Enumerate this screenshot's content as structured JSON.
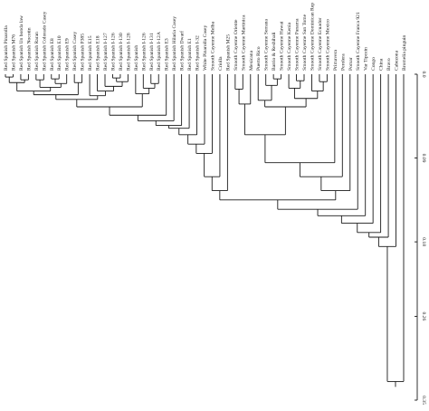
{
  "dendrogram": {
    "orientation": "rotated-90",
    "leaves": [
      "Red Spanish Pinarolla",
      "Red Spanish M76",
      "Red Spanish Un bonda law",
      "Red Spanish Nocotin",
      "Red Spanish Raran",
      "Red Spanish Colorado Casey",
      "Red Spanish E8",
      "Red Spanish E10",
      "Red Spanish E9",
      "Red Spanish Casey",
      "Red Spanish P385",
      "Red Spanish E15",
      "Red Spanish E18",
      "Red Spanish I-127",
      "Red Spanish I-126",
      "Red Spanish I-130",
      "Red Spanish I-128",
      "Red Spanish",
      "Red Spanish I-126",
      "Red Spanish I-131",
      "Red Spanish I-12A",
      "Red Spanish E3",
      "Red Spanish Hilaria Casey",
      "Red Spanish Dwarf",
      "Red Spanish E1",
      "Red Spanish I-32",
      "White Pinarolla Casey",
      "Smooth Cayenne Melba",
      "Criolla",
      "Red Spanish M25",
      "Smooth Cayenne Oriente",
      "Smooth Cayenne Martinica",
      "Mexicana",
      "Puerto Rico",
      "Smooth Cayenne Serrana",
      "Barrio & Reshihali",
      "Smooth Cayenne Hawai",
      "Smooth Cayenne Kenia",
      "Smooth Cayenne Panama",
      "Smooth Cayenne San Tome",
      "Smooth Cayenne Dominican Rep",
      "Smooth Cayenne Ecuador",
      "Smooth Cayenne Mexico",
      "Primavera",
      "Perolera",
      "Pomar",
      "Smooth Cayenne Franca 921",
      "Var Tipcein",
      "Congo",
      "China",
      "Bravo",
      "Cabezona",
      "Bromelia pinguin"
    ],
    "axis": {
      "ticks": [
        "0.0",
        "0.09",
        "0.18",
        "0.26",
        "0.35"
      ],
      "tick_values": [
        0.0,
        0.09,
        0.18,
        0.26,
        0.35
      ],
      "range": [
        0,
        0.35
      ]
    },
    "merges": [
      [
        0,
        1,
        0.003
      ],
      [
        2,
        3,
        0.006
      ],
      [
        53,
        54,
        0.009
      ],
      [
        4,
        5,
        0.006
      ],
      [
        6,
        7,
        0.005
      ],
      [
        57,
        8,
        0.01
      ],
      [
        56,
        58,
        0.014
      ],
      [
        55,
        59,
        0.018
      ],
      [
        9,
        10,
        0.009
      ],
      [
        60,
        61,
        0.022
      ],
      [
        14,
        15,
        0.004
      ],
      [
        63,
        16,
        0.008
      ],
      [
        13,
        64,
        0.013
      ],
      [
        12,
        65,
        0.018
      ],
      [
        11,
        66,
        0.023
      ],
      [
        62,
        67,
        0.027
      ],
      [
        19,
        20,
        0.01
      ],
      [
        18,
        69,
        0.015
      ],
      [
        17,
        70,
        0.021
      ],
      [
        68,
        71,
        0.035
      ],
      [
        72,
        21,
        0.044
      ],
      [
        73,
        22,
        0.05
      ],
      [
        74,
        23,
        0.055
      ],
      [
        75,
        24,
        0.058
      ],
      [
        76,
        25,
        0.065
      ],
      [
        77,
        26,
        0.075
      ],
      [
        78,
        27,
        0.085
      ],
      [
        79,
        28,
        0.11
      ],
      [
        80,
        29,
        0.125
      ],
      [
        30,
        31,
        0.016
      ],
      [
        82,
        32,
        0.032
      ],
      [
        35,
        36,
        0.005
      ],
      [
        34,
        84,
        0.012
      ],
      [
        33,
        85,
        0.028
      ],
      [
        38,
        39,
        0.007
      ],
      [
        37,
        87,
        0.015
      ],
      [
        41,
        42,
        0.008
      ],
      [
        40,
        89,
        0.018
      ],
      [
        88,
        90,
        0.026
      ],
      [
        86,
        91,
        0.035
      ],
      [
        83,
        92,
        0.065
      ],
      [
        93,
        43,
        0.095
      ],
      [
        94,
        44,
        0.11
      ],
      [
        95,
        45,
        0.125
      ],
      [
        81,
        96,
        0.135
      ],
      [
        97,
        46,
        0.145
      ],
      [
        98,
        47,
        0.152
      ],
      [
        99,
        48,
        0.16
      ],
      [
        100,
        49,
        0.17
      ],
      [
        101,
        50,
        0.175
      ],
      [
        102,
        51,
        0.185
      ],
      [
        103,
        52,
        0.33
      ]
    ]
  }
}
